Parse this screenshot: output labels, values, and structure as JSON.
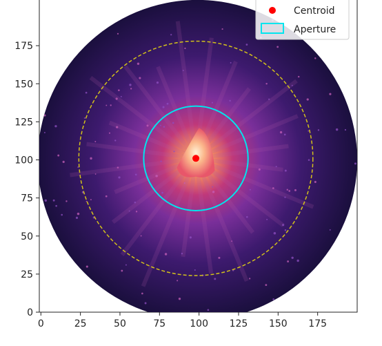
{
  "chart_data": {
    "type": "image",
    "colormap": "magma",
    "xlim": [
      -1,
      200
    ],
    "ylim": [
      0,
      205
    ],
    "x_ticks": [
      0,
      25,
      50,
      75,
      100,
      125,
      150,
      175
    ],
    "y_ticks": [
      0,
      25,
      50,
      75,
      100,
      125,
      150,
      175
    ],
    "x_tick_labels": [
      "0",
      "25",
      "50",
      "75",
      "100",
      "125",
      "150",
      "175"
    ],
    "y_tick_labels": [
      "0",
      "25",
      "50",
      "75",
      "100",
      "125",
      "150",
      "175"
    ],
    "image_disk": {
      "center": [
        99,
        100
      ],
      "radius": 101
    },
    "centroid": {
      "x": 98,
      "y": 101,
      "color": "#ff0000"
    },
    "aperture": {
      "center": [
        98,
        101
      ],
      "radius": 33,
      "color": "#00e5ee"
    },
    "annulus": {
      "center": [
        98,
        101
      ],
      "radius": 74,
      "color": "#d4c21a",
      "style": "dashed"
    },
    "legend": {
      "position": "upper-right",
      "entries": [
        {
          "label": "Centroid",
          "marker": "dot",
          "color": "#ff0000"
        },
        {
          "label": "Aperture",
          "marker": "rect",
          "color": "#00e5ee"
        }
      ]
    },
    "colors": {
      "background": "#1a0f3d",
      "halo": "#7a2f9a",
      "core": "#fce0b0"
    }
  }
}
